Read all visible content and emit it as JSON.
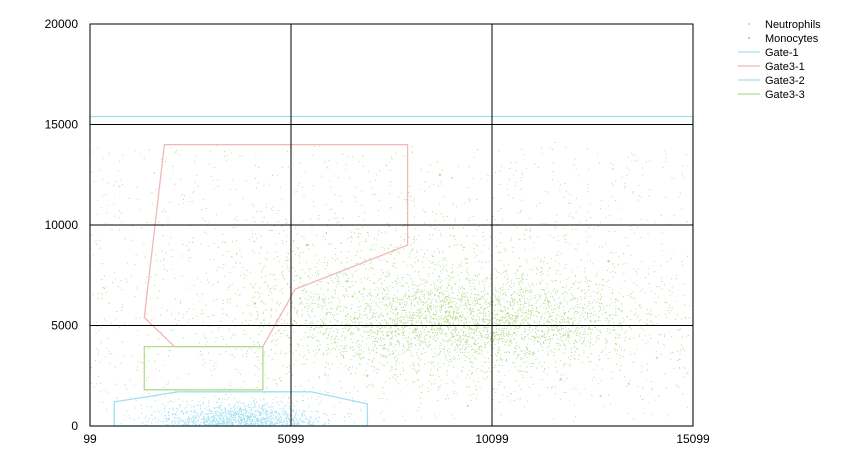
{
  "chart_data": {
    "type": "scatter",
    "title": "",
    "xlabel": "",
    "ylabel": "",
    "xlim": [
      99,
      15099
    ],
    "ylim": [
      0,
      20000
    ],
    "x_ticks": [
      99,
      5099,
      10099,
      15099
    ],
    "y_ticks": [
      0,
      5000,
      10000,
      15000,
      20000
    ],
    "x_tick_labels": [
      "99",
      "5099",
      "10099",
      "15099"
    ],
    "y_tick_labels": [
      "0",
      "5000",
      "10000",
      "15000",
      "20000"
    ],
    "grid": true,
    "legend_position": "top-right",
    "series": [
      {
        "name": "Neutrophils",
        "kind": "points",
        "color": "#f2c9c9",
        "points": [
          [
            13500,
            2100
          ],
          [
            12800,
            1500
          ],
          [
            9500,
            1000
          ],
          [
            14200,
            3400
          ],
          [
            11800,
            2300
          ]
        ]
      },
      {
        "name": "Monocytes",
        "kind": "points",
        "color": "#b4dc8c",
        "points": [
          [
            7500,
            4500
          ],
          [
            8200,
            4800
          ],
          [
            9000,
            5200
          ],
          [
            10500,
            5600
          ],
          [
            11500,
            6200
          ],
          [
            6500,
            7200
          ],
          [
            5500,
            9000
          ],
          [
            8800,
            12500
          ],
          [
            13000,
            8200
          ],
          [
            4200,
            6100
          ],
          [
            7000,
            2500
          ],
          [
            12000,
            4500
          ]
        ]
      },
      {
        "name": "Gate-1",
        "kind": "polygon",
        "color": "#9fe0f0",
        "vertices": [
          [
            99,
            0
          ],
          [
            99,
            15400
          ],
          [
            15099,
            15400
          ],
          [
            15099,
            0
          ]
        ]
      },
      {
        "name": "Gate3-1",
        "kind": "polygon",
        "color": "#f2b8b8",
        "vertices": [
          [
            1950,
            14000
          ],
          [
            7999,
            14000
          ],
          [
            7999,
            9000
          ],
          [
            5200,
            6800
          ],
          [
            4400,
            3950
          ],
          [
            2200,
            3950
          ],
          [
            1450,
            5400
          ]
        ]
      },
      {
        "name": "Gate3-2",
        "kind": "polygon",
        "color": "#9fe0f0",
        "vertices": [
          [
            700,
            0
          ],
          [
            700,
            1200
          ],
          [
            2300,
            1700
          ],
          [
            5600,
            1700
          ],
          [
            7000,
            1100
          ],
          [
            7000,
            0
          ]
        ]
      },
      {
        "name": "Gate3-3",
        "kind": "polygon",
        "color": "#b4dc8c",
        "vertices": [
          [
            1450,
            3950
          ],
          [
            4400,
            3950
          ],
          [
            4400,
            1800
          ],
          [
            1450,
            1800
          ]
        ]
      }
    ]
  }
}
